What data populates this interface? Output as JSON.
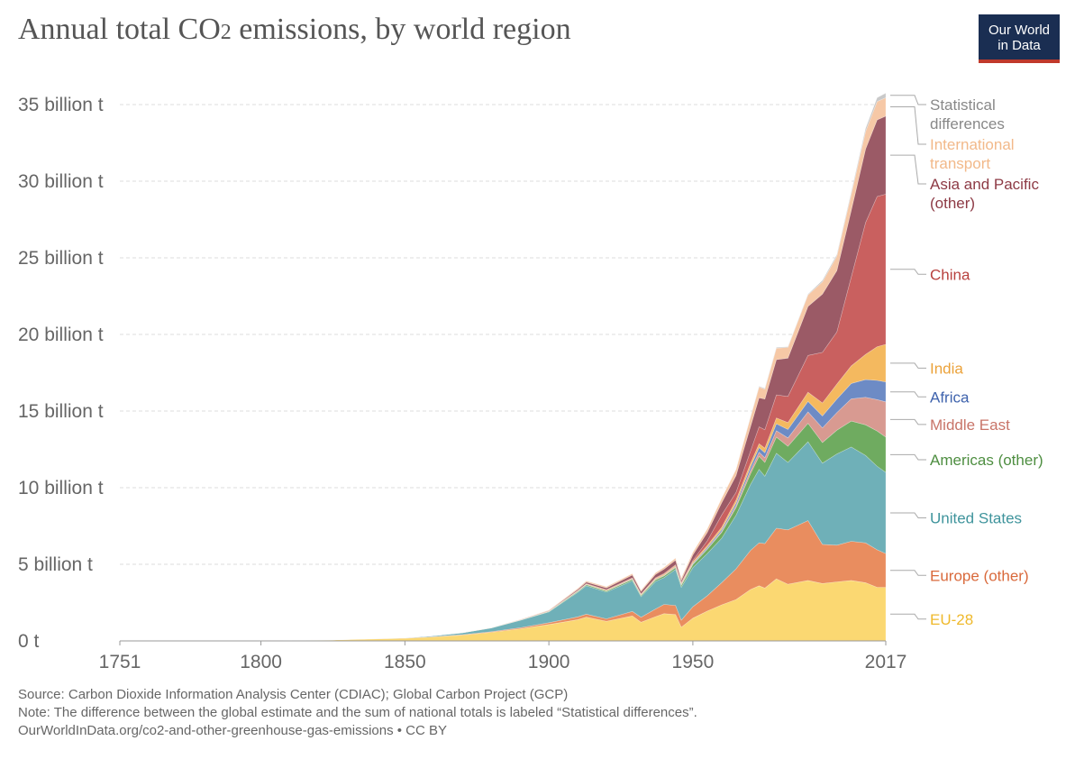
{
  "header": {
    "title_main": "Annual total CO",
    "title_sub": "2",
    "title_rest": " emissions, by world region",
    "logo_line1": "Our World",
    "logo_line2": "in Data"
  },
  "footer": {
    "source": "Source: Carbon Dioxide Information Analysis Center (CDIAC); Global Carbon Project (GCP)",
    "note": "Note: The difference between the global estimate and the sum of national totals is labeled “Statistical differences”.",
    "url": "OurWorldInData.org/co2-and-other-greenhouse-gas-emissions • CC BY"
  },
  "chart_data": {
    "type": "area",
    "stacked": true,
    "x_unit": "year",
    "y_unit": "billion t",
    "xlim": [
      1751,
      2017
    ],
    "ylim": [
      0,
      36
    ],
    "x_ticks": [
      {
        "value": 1751,
        "label": "1751"
      },
      {
        "value": 1800,
        "label": "1800"
      },
      {
        "value": 1850,
        "label": "1850"
      },
      {
        "value": 1900,
        "label": "1900"
      },
      {
        "value": 1950,
        "label": "1950"
      },
      {
        "value": 2017,
        "label": "2017"
      }
    ],
    "y_ticks": [
      {
        "value": 0,
        "label": "0 t"
      },
      {
        "value": 5,
        "label": "5 billion t"
      },
      {
        "value": 10,
        "label": "10 billion t"
      },
      {
        "value": 15,
        "label": "15 billion t"
      },
      {
        "value": 20,
        "label": "20 billion t"
      },
      {
        "value": 25,
        "label": "25 billion t"
      },
      {
        "value": 30,
        "label": "30 billion t"
      },
      {
        "value": 35,
        "label": "35 billion t"
      }
    ],
    "grid": "horizontal-dashed",
    "legend": "right-inline",
    "x": [
      1751,
      1800,
      1825,
      1850,
      1860,
      1870,
      1880,
      1890,
      1900,
      1910,
      1913,
      1920,
      1929,
      1932,
      1937,
      1940,
      1944,
      1946,
      1950,
      1955,
      1960,
      1965,
      1970,
      1973,
      1975,
      1979,
      1983,
      1990,
      1995,
      2000,
      2005,
      2010,
      2014,
      2017
    ],
    "series": [
      {
        "name": "EU-28",
        "color": "#fbd872",
        "values": [
          0.01,
          0.03,
          0.07,
          0.17,
          0.26,
          0.38,
          0.56,
          0.79,
          1.07,
          1.39,
          1.55,
          1.28,
          1.63,
          1.22,
          1.58,
          1.78,
          1.72,
          0.9,
          1.48,
          1.95,
          2.35,
          2.7,
          3.35,
          3.6,
          3.45,
          4.05,
          3.7,
          3.95,
          3.75,
          3.85,
          3.95,
          3.8,
          3.5,
          3.5
        ]
      },
      {
        "name": "Europe (other)",
        "color": "#e98d5f",
        "values": [
          0.0,
          0.0,
          0.0,
          0.01,
          0.02,
          0.03,
          0.04,
          0.07,
          0.12,
          0.18,
          0.2,
          0.16,
          0.3,
          0.32,
          0.5,
          0.6,
          0.6,
          0.45,
          0.75,
          1.0,
          1.45,
          2.0,
          2.55,
          2.8,
          2.9,
          3.3,
          3.55,
          3.9,
          2.55,
          2.4,
          2.55,
          2.6,
          2.45,
          2.2
        ]
      },
      {
        "name": "United States",
        "color": "#6fb0b8",
        "values": [
          0.0,
          0.0,
          0.0,
          0.02,
          0.06,
          0.12,
          0.24,
          0.48,
          0.7,
          1.6,
          1.85,
          1.75,
          2.0,
          1.35,
          1.8,
          1.75,
          2.35,
          2.15,
          2.55,
          2.75,
          2.9,
          3.5,
          4.3,
          4.8,
          4.4,
          4.9,
          4.4,
          5.15,
          5.3,
          5.95,
          6.15,
          5.7,
          5.45,
          5.3
        ]
      },
      {
        "name": "Americas (other)",
        "color": "#6fab60",
        "values": [
          0.0,
          0.0,
          0.0,
          0.0,
          0.0,
          0.0,
          0.01,
          0.02,
          0.03,
          0.06,
          0.07,
          0.07,
          0.09,
          0.08,
          0.1,
          0.11,
          0.12,
          0.13,
          0.2,
          0.28,
          0.38,
          0.5,
          0.7,
          0.85,
          0.9,
          1.05,
          1.05,
          1.2,
          1.35,
          1.55,
          1.7,
          2.0,
          2.3,
          2.3
        ]
      },
      {
        "name": "Middle East",
        "color": "#d89a91",
        "values": [
          0.0,
          0.0,
          0.0,
          0.0,
          0.0,
          0.0,
          0.0,
          0.0,
          0.0,
          0.0,
          0.0,
          0.0,
          0.0,
          0.0,
          0.01,
          0.01,
          0.01,
          0.01,
          0.02,
          0.04,
          0.07,
          0.12,
          0.2,
          0.27,
          0.3,
          0.42,
          0.55,
          0.75,
          0.95,
          1.15,
          1.45,
          1.8,
          2.05,
          2.3
        ]
      },
      {
        "name": "Africa",
        "color": "#6d8bc5",
        "values": [
          0.0,
          0.0,
          0.0,
          0.0,
          0.0,
          0.0,
          0.0,
          0.0,
          0.0,
          0.01,
          0.01,
          0.01,
          0.02,
          0.02,
          0.03,
          0.03,
          0.04,
          0.04,
          0.06,
          0.09,
          0.12,
          0.17,
          0.25,
          0.3,
          0.33,
          0.45,
          0.55,
          0.68,
          0.78,
          0.88,
          1.0,
          1.15,
          1.25,
          1.3
        ]
      },
      {
        "name": "India",
        "color": "#f4b95f",
        "values": [
          0.0,
          0.0,
          0.0,
          0.0,
          0.0,
          0.01,
          0.01,
          0.01,
          0.02,
          0.03,
          0.04,
          0.05,
          0.05,
          0.05,
          0.06,
          0.07,
          0.08,
          0.08,
          0.1,
          0.12,
          0.15,
          0.2,
          0.22,
          0.25,
          0.3,
          0.38,
          0.45,
          0.6,
          0.85,
          0.98,
          1.15,
          1.65,
          2.2,
          2.45
        ]
      },
      {
        "name": "China",
        "color": "#c9605f",
        "values": [
          0.0,
          0.0,
          0.0,
          0.0,
          0.0,
          0.0,
          0.0,
          0.0,
          0.0,
          0.01,
          0.02,
          0.02,
          0.03,
          0.03,
          0.04,
          0.05,
          0.05,
          0.05,
          0.1,
          0.3,
          0.8,
          0.5,
          0.8,
          1.1,
          1.2,
          1.5,
          1.7,
          2.4,
          3.3,
          3.4,
          5.8,
          8.6,
          9.8,
          9.8
        ]
      },
      {
        "name": "Asia and Pacific (other)",
        "color": "#9b5a66",
        "values": [
          0.0,
          0.0,
          0.0,
          0.0,
          0.0,
          0.0,
          0.0,
          0.01,
          0.03,
          0.08,
          0.1,
          0.12,
          0.18,
          0.16,
          0.22,
          0.28,
          0.3,
          0.15,
          0.35,
          0.55,
          0.8,
          1.1,
          1.6,
          1.9,
          2.0,
          2.3,
          2.5,
          3.2,
          3.8,
          4.0,
          4.35,
          4.8,
          5.0,
          5.1
        ]
      },
      {
        "name": "International transport",
        "color": "#f6c8a6",
        "values": [
          0.0,
          0.0,
          0.0,
          0.0,
          0.0,
          0.0,
          0.01,
          0.02,
          0.04,
          0.07,
          0.08,
          0.08,
          0.1,
          0.09,
          0.11,
          0.12,
          0.14,
          0.15,
          0.18,
          0.24,
          0.3,
          0.4,
          0.6,
          0.7,
          0.65,
          0.75,
          0.7,
          0.75,
          0.8,
          0.95,
          1.05,
          1.15,
          1.2,
          1.2
        ]
      },
      {
        "name": "Statistical differences",
        "color": "#c9c9c9",
        "values": [
          0.0,
          0.0,
          0.0,
          0.0,
          0.0,
          0.0,
          0.0,
          0.0,
          0.0,
          0.0,
          0.0,
          0.0,
          0.0,
          0.0,
          0.0,
          0.0,
          0.0,
          0.0,
          0.0,
          0.0,
          0.0,
          0.0,
          0.05,
          0.05,
          0.05,
          0.05,
          0.05,
          0.05,
          0.1,
          0.1,
          0.15,
          0.2,
          0.25,
          0.3
        ]
      }
    ],
    "labels": [
      {
        "lines": [
          "Statistical",
          "differences"
        ],
        "color": "#888888"
      },
      {
        "lines": [
          "International",
          "transport"
        ],
        "color": "#f2b98a"
      },
      {
        "lines": [
          "Asia and Pacific",
          "(other)"
        ],
        "color": "#8d3a45"
      },
      {
        "lines": [
          "China"
        ],
        "color": "#b8413e"
      },
      {
        "lines": [
          "India"
        ],
        "color": "#eba23a"
      },
      {
        "lines": [
          "Africa"
        ],
        "color": "#3f63ad"
      },
      {
        "lines": [
          "Middle East"
        ],
        "color": "#c87468"
      },
      {
        "lines": [
          "Americas (other)"
        ],
        "color": "#4e8e41"
      },
      {
        "lines": [
          "United States"
        ],
        "color": "#3f949c"
      },
      {
        "lines": [
          "Europe (other)"
        ],
        "color": "#d9693b"
      },
      {
        "lines": [
          "EU-28"
        ],
        "color": "#efb92c"
      }
    ]
  }
}
